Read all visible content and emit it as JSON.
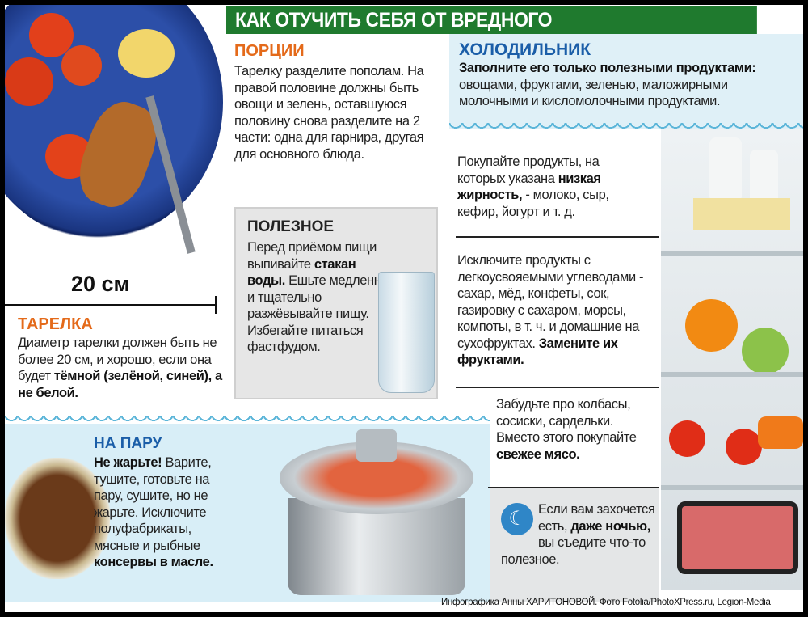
{
  "title": "КАК ОТУЧИТЬ СЕБЯ ОТ ВРЕДНОГО",
  "plate": {
    "size_label": "20 см",
    "heading": "ТАРЕЛКА",
    "text_plain": "Диаметр тарелки должен быть не более 20 см, и хорошо, если она будет ",
    "text_bold": "тёмной (зелёной, синей), а не белой."
  },
  "portions": {
    "heading": "ПОРЦИИ",
    "text": "Тарелку разделите пополам. На правой половине должны быть овощи и зелень, оставшуюся половину снова разделите на 2 части: одна для гарнира, другая для основного блюда."
  },
  "useful": {
    "heading": "ПОЛЕЗНОЕ",
    "text1": "Перед приёмом пищи выпивайте ",
    "text1_bold": "стакан воды.",
    "text2": "Ешьте медленно и тщательно разжёвывайте пищу. Избегайте питаться фастфудом."
  },
  "fridge": {
    "heading": "ХОЛОДИЛЬНИК",
    "intro_bold": "Заполните его только полезными продуктами:",
    "intro": " овощами, фруктами, зеленью, маложирными молочными и кисломолочными продуктами.",
    "tips": [
      {
        "pre": "Покупайте продукты, на которых указана ",
        "bold": "низкая жирность,",
        "post": " - молоко, сыр, кефир, йогурт и т. д."
      },
      {
        "pre": "Исключите продукты с легкоусвояемыми углеводами - сахар, мёд, конфеты, сок, газировку с сахаром, морсы, компоты, в т. ч. и домашние на сухофруктах. ",
        "bold": "Замените их фруктами.",
        "post": ""
      },
      {
        "pre": "Забудьте про колбасы, сосиски, сардельки. Вместо этого покупайте ",
        "bold": "свежее мясо.",
        "post": ""
      },
      {
        "pre": "Если вам захочется есть, ",
        "bold": "даже ночью,",
        "post": " вы съедите что-то полезное."
      }
    ]
  },
  "steam": {
    "heading": "НА ПАРУ",
    "bold1": "Не жарьте!",
    "text": " Варите, тушите, готовьте на пару, сушите, но не жарьте. Исключите полуфабрикаты, мясные и рыбные ",
    "bold2": "консервы в масле."
  },
  "credit": "Инфографика Анны ХАРИТОНОВОЙ. Фото Fotolia/PhotoXPress.ru, Legion-Media",
  "colors": {
    "title_bg": "#1f7a2e",
    "orange": "#e46a1a",
    "blue": "#1b5ea8",
    "light_blue": "#d8eef7"
  }
}
